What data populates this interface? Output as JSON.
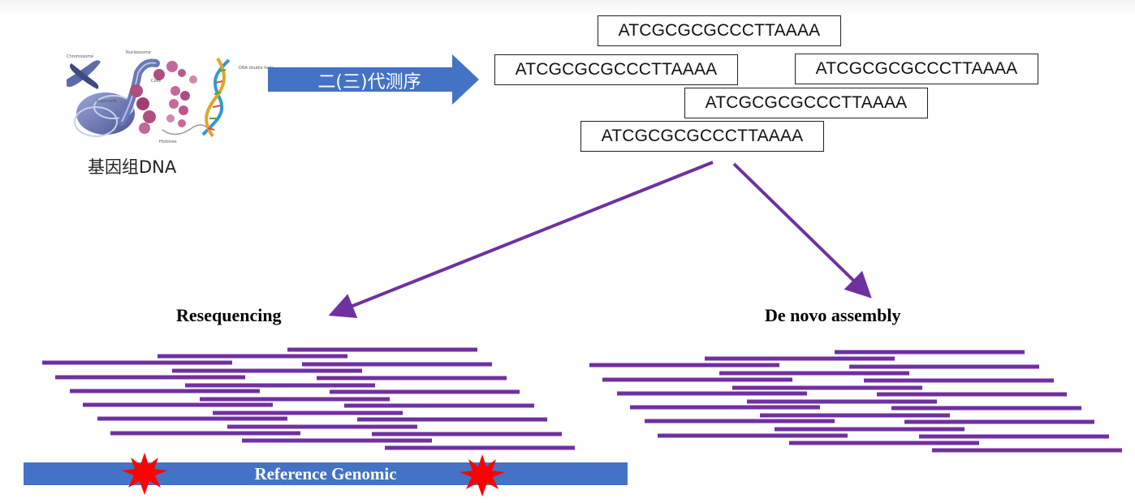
{
  "dna_figure": {
    "caption": "基因组DNA",
    "labels": [
      "Chromosome",
      "Nucleosome",
      "Supercoils",
      "Histones",
      "Coils",
      "DNA double helix"
    ]
  },
  "sequencing_arrow": {
    "label": "二(三)代测序"
  },
  "reads": [
    "ATCGCGCGCCCTTAAAA",
    "ATCGCGCGCCCTTAAAA",
    "ATCGCGCGCCCTTAAAA",
    "ATCGCGCGCCCTTAAAA",
    "ATCGCGCGCCCTTAAAA"
  ],
  "resequencing": {
    "title": "Resequencing",
    "reference_label": "Reference Genomic"
  },
  "de_novo": {
    "title": "De novo assembly"
  },
  "colors": {
    "arrow_blue": "#4472c4",
    "read_purple": "#7030a0",
    "star_red": "#ff0000",
    "reference_bar": "#4472c4"
  }
}
